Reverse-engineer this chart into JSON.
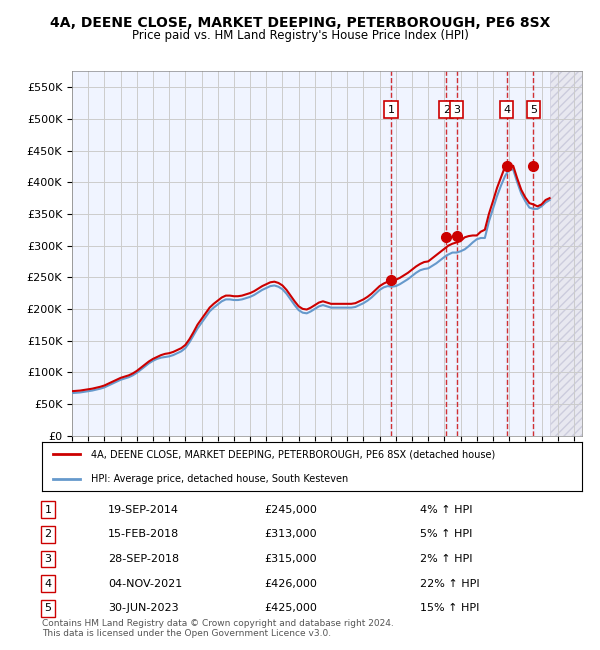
{
  "title": "4A, DEENE CLOSE, MARKET DEEPING, PETERBOROUGH, PE6 8SX",
  "subtitle": "Price paid vs. HM Land Registry's House Price Index (HPI)",
  "ylabel": "",
  "ylim": [
    0,
    575000
  ],
  "yticks": [
    0,
    50000,
    100000,
    150000,
    200000,
    250000,
    300000,
    350000,
    400000,
    450000,
    500000,
    550000
  ],
  "ytick_labels": [
    "£0",
    "£50K",
    "£100K",
    "£150K",
    "£200K",
    "£250K",
    "£300K",
    "£350K",
    "£400K",
    "£450K",
    "£500K",
    "£550K"
  ],
  "xlim_start": 1995.0,
  "xlim_end": 2026.5,
  "hpi_color": "#6699cc",
  "price_color": "#cc0000",
  "grid_color": "#cccccc",
  "bg_color": "#f0f4ff",
  "hatch_color": "#ccccdd",
  "sale_marker_color": "#cc0000",
  "sale_box_color": "#cc0000",
  "sale_line_color": "#cc0000",
  "transactions": [
    {
      "num": 1,
      "date_x": 2014.72,
      "price": 245000,
      "date_str": "19-SEP-2014",
      "price_str": "£245,000",
      "hpi_str": "4% ↑ HPI"
    },
    {
      "num": 2,
      "date_x": 2018.12,
      "price": 313000,
      "date_str": "15-FEB-2018",
      "price_str": "£313,000",
      "hpi_str": "5% ↑ HPI"
    },
    {
      "num": 3,
      "date_x": 2018.75,
      "price": 315000,
      "date_str": "28-SEP-2018",
      "price_str": "£315,000",
      "hpi_str": "2% ↑ HPI"
    },
    {
      "num": 4,
      "date_x": 2021.84,
      "price": 426000,
      "date_str": "04-NOV-2021",
      "price_str": "£426,000",
      "hpi_str": "22% ↑ HPI"
    },
    {
      "num": 5,
      "date_x": 2023.5,
      "price": 425000,
      "date_str": "30-JUN-2023",
      "price_str": "£425,000",
      "hpi_str": "15% ↑ HPI"
    }
  ],
  "legend_label_price": "4A, DEENE CLOSE, MARKET DEEPING, PETERBOROUGH, PE6 8SX (detached house)",
  "legend_label_hpi": "HPI: Average price, detached house, South Kesteven",
  "footer": "Contains HM Land Registry data © Crown copyright and database right 2024.\nThis data is licensed under the Open Government Licence v3.0.",
  "hpi_data_x": [
    1995.0,
    1995.25,
    1995.5,
    1995.75,
    1996.0,
    1996.25,
    1996.5,
    1996.75,
    1997.0,
    1997.25,
    1997.5,
    1997.75,
    1998.0,
    1998.25,
    1998.5,
    1998.75,
    1999.0,
    1999.25,
    1999.5,
    1999.75,
    2000.0,
    2000.25,
    2000.5,
    2000.75,
    2001.0,
    2001.25,
    2001.5,
    2001.75,
    2002.0,
    2002.25,
    2002.5,
    2002.75,
    2003.0,
    2003.25,
    2003.5,
    2003.75,
    2004.0,
    2004.25,
    2004.5,
    2004.75,
    2005.0,
    2005.25,
    2005.5,
    2005.75,
    2006.0,
    2006.25,
    2006.5,
    2006.75,
    2007.0,
    2007.25,
    2007.5,
    2007.75,
    2008.0,
    2008.25,
    2008.5,
    2008.75,
    2009.0,
    2009.25,
    2009.5,
    2009.75,
    2010.0,
    2010.25,
    2010.5,
    2010.75,
    2011.0,
    2011.25,
    2011.5,
    2011.75,
    2012.0,
    2012.25,
    2012.5,
    2012.75,
    2013.0,
    2013.25,
    2013.5,
    2013.75,
    2014.0,
    2014.25,
    2014.5,
    2014.75,
    2015.0,
    2015.25,
    2015.5,
    2015.75,
    2016.0,
    2016.25,
    2016.5,
    2016.75,
    2017.0,
    2017.25,
    2017.5,
    2017.75,
    2018.0,
    2018.25,
    2018.5,
    2018.75,
    2019.0,
    2019.25,
    2019.5,
    2019.75,
    2020.0,
    2020.25,
    2020.5,
    2020.75,
    2021.0,
    2021.25,
    2021.5,
    2021.75,
    2022.0,
    2022.25,
    2022.5,
    2022.75,
    2023.0,
    2023.25,
    2023.5,
    2023.75,
    2024.0,
    2024.25,
    2024.5
  ],
  "hpi_data_y": [
    67000,
    67500,
    68000,
    69000,
    70000,
    71000,
    72500,
    74000,
    76000,
    79000,
    82000,
    85000,
    88000,
    90000,
    92000,
    95000,
    99000,
    104000,
    109000,
    114000,
    118000,
    121000,
    123000,
    124000,
    125000,
    127000,
    130000,
    133000,
    138000,
    147000,
    158000,
    169000,
    178000,
    187000,
    196000,
    202000,
    207000,
    212000,
    215000,
    215000,
    214000,
    214000,
    215000,
    217000,
    219000,
    222000,
    226000,
    230000,
    233000,
    236000,
    237000,
    235000,
    231000,
    224000,
    215000,
    206000,
    198000,
    194000,
    193000,
    196000,
    200000,
    204000,
    206000,
    204000,
    202000,
    202000,
    202000,
    202000,
    202000,
    202000,
    203000,
    206000,
    209000,
    213000,
    218000,
    224000,
    230000,
    234000,
    236000,
    235000,
    236000,
    239000,
    243000,
    247000,
    252000,
    257000,
    261000,
    263000,
    264000,
    268000,
    272000,
    277000,
    282000,
    286000,
    289000,
    289000,
    291000,
    294000,
    299000,
    305000,
    310000,
    312000,
    312000,
    338000,
    358000,
    378000,
    395000,
    410000,
    420000,
    420000,
    400000,
    382000,
    370000,
    360000,
    358000,
    358000,
    362000,
    368000,
    372000
  ],
  "price_data_x": [
    1995.0,
    1995.25,
    1995.5,
    1995.75,
    1996.0,
    1996.25,
    1996.5,
    1996.75,
    1997.0,
    1997.25,
    1997.5,
    1997.75,
    1998.0,
    1998.25,
    1998.5,
    1998.75,
    1999.0,
    1999.25,
    1999.5,
    1999.75,
    2000.0,
    2000.25,
    2000.5,
    2000.75,
    2001.0,
    2001.25,
    2001.5,
    2001.75,
    2002.0,
    2002.25,
    2002.5,
    2002.75,
    2003.0,
    2003.25,
    2003.5,
    2003.75,
    2004.0,
    2004.25,
    2004.5,
    2004.75,
    2005.0,
    2005.25,
    2005.5,
    2005.75,
    2006.0,
    2006.25,
    2006.5,
    2006.75,
    2007.0,
    2007.25,
    2007.5,
    2007.75,
    2008.0,
    2008.25,
    2008.5,
    2008.75,
    2009.0,
    2009.25,
    2009.5,
    2009.75,
    2010.0,
    2010.25,
    2010.5,
    2010.75,
    2011.0,
    2011.25,
    2011.5,
    2011.75,
    2012.0,
    2012.25,
    2012.5,
    2012.75,
    2013.0,
    2013.25,
    2013.5,
    2013.75,
    2014.0,
    2014.25,
    2014.5,
    2014.75,
    2015.0,
    2015.25,
    2015.5,
    2015.75,
    2016.0,
    2016.25,
    2016.5,
    2016.75,
    2017.0,
    2017.25,
    2017.5,
    2017.75,
    2018.0,
    2018.25,
    2018.5,
    2018.75,
    2019.0,
    2019.25,
    2019.5,
    2019.75,
    2020.0,
    2020.25,
    2020.5,
    2020.75,
    2021.0,
    2021.25,
    2021.5,
    2021.75,
    2022.0,
    2022.25,
    2022.5,
    2022.75,
    2023.0,
    2023.25,
    2023.5,
    2023.75,
    2024.0,
    2024.25,
    2024.5
  ],
  "price_data_y": [
    70000,
    70500,
    71000,
    72000,
    73000,
    74000,
    75500,
    77000,
    79000,
    82000,
    85000,
    88000,
    91000,
    93000,
    95000,
    98000,
    102000,
    107000,
    112000,
    117000,
    121000,
    124000,
    127000,
    129000,
    130000,
    132000,
    135000,
    138000,
    143000,
    152000,
    163000,
    175000,
    184000,
    193000,
    202000,
    208000,
    213000,
    218000,
    221000,
    221000,
    220000,
    220000,
    221000,
    223000,
    225000,
    228000,
    232000,
    236000,
    239000,
    242000,
    243000,
    241000,
    237000,
    230000,
    221000,
    212000,
    204000,
    200000,
    199000,
    202000,
    206000,
    210000,
    212000,
    210000,
    208000,
    208000,
    208000,
    208000,
    208000,
    208000,
    209000,
    212000,
    215000,
    219000,
    224000,
    230000,
    236000,
    240000,
    243000,
    245000,
    246000,
    249000,
    253000,
    257000,
    262000,
    267000,
    271000,
    274000,
    275000,
    280000,
    285000,
    290000,
    295000,
    300000,
    303000,
    305000,
    307000,
    313000,
    315000,
    316000,
    316000,
    322000,
    325000,
    350000,
    370000,
    391000,
    408000,
    425000,
    426000,
    426000,
    406000,
    388000,
    376000,
    367000,
    365000,
    362000,
    365000,
    372000,
    375000
  ]
}
